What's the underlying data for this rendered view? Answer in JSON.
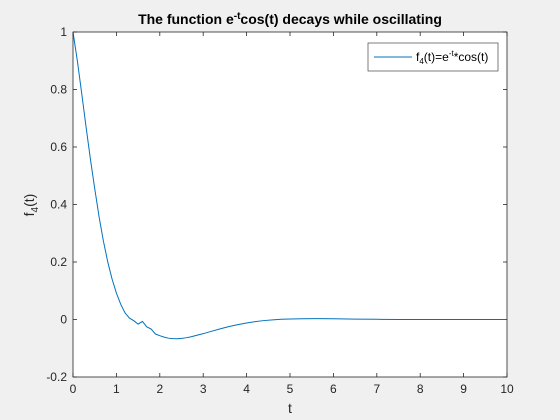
{
  "chart_data": {
    "type": "line",
    "title": {
      "prefix": "The function e",
      "superscript": "-t",
      "suffix": "cos(t) decays while oscillating"
    },
    "xlabel": "t",
    "ylabel": {
      "main": "f",
      "subscript": "4",
      "suffix": "(t)"
    },
    "xlim": [
      0,
      10
    ],
    "ylim": [
      -0.2,
      1
    ],
    "xticks": [
      0,
      1,
      2,
      3,
      4,
      5,
      6,
      7,
      8,
      9,
      10
    ],
    "yticks": [
      -0.2,
      0,
      0.2,
      0.4,
      0.6,
      0.8,
      1
    ],
    "xtick_labels": [
      "0",
      "1",
      "2",
      "3",
      "4",
      "5",
      "6",
      "7",
      "8",
      "9",
      "10"
    ],
    "ytick_labels": [
      "-0.2",
      "0",
      "0.2",
      "0.4",
      "0.6",
      "0.8",
      "1"
    ],
    "grid": false,
    "legend_position": "top-right",
    "series": [
      {
        "name": {
          "base": "f",
          "subscript": "4",
          "middle": "(t)=e",
          "superscript": "-t",
          "suffix": "*cos(t)"
        },
        "color": "#0072BD",
        "x": [
          0,
          0.1,
          0.2,
          0.3,
          0.4,
          0.5,
          0.6,
          0.7,
          0.8,
          0.9,
          1.0,
          1.1,
          1.2,
          1.3,
          1.4,
          1.5,
          1.6,
          1.7,
          1.8,
          1.9,
          2.0,
          2.1,
          2.2,
          2.3,
          2.4,
          2.5,
          2.6,
          2.7,
          2.8,
          2.9,
          3.0,
          3.2,
          3.4,
          3.6,
          3.8,
          4.0,
          4.2,
          4.4,
          4.6,
          4.8,
          5.0,
          5.3,
          5.6,
          6.0,
          6.5,
          7.0,
          7.5,
          8.0,
          8.5,
          9.0,
          9.5,
          10.0
        ],
        "y": [
          1.0,
          0.9003,
          0.7871,
          0.6708,
          0.5587,
          0.456,
          0.358,
          0.2732,
          0.2009,
          0.1408,
          0.092,
          0.0528,
          0.0229,
          0.0049,
          -0.0041,
          -0.016,
          -0.0068,
          -0.0254,
          -0.0333,
          -0.0505,
          -0.0563,
          -0.0614,
          -0.065,
          -0.0666,
          -0.0669,
          -0.0658,
          -0.0637,
          -0.0607,
          -0.057,
          -0.0529,
          -0.0493,
          -0.0406,
          -0.0322,
          -0.0245,
          -0.0177,
          -0.012,
          -0.0074,
          -0.0037,
          -0.0011,
          0.0007,
          0.0019,
          0.0028,
          0.0029,
          0.0024,
          0.0014,
          0.0007,
          0.0002,
          -0.0,
          -0.0001,
          -0.0001,
          -0.0001,
          -0.0
        ]
      }
    ]
  }
}
